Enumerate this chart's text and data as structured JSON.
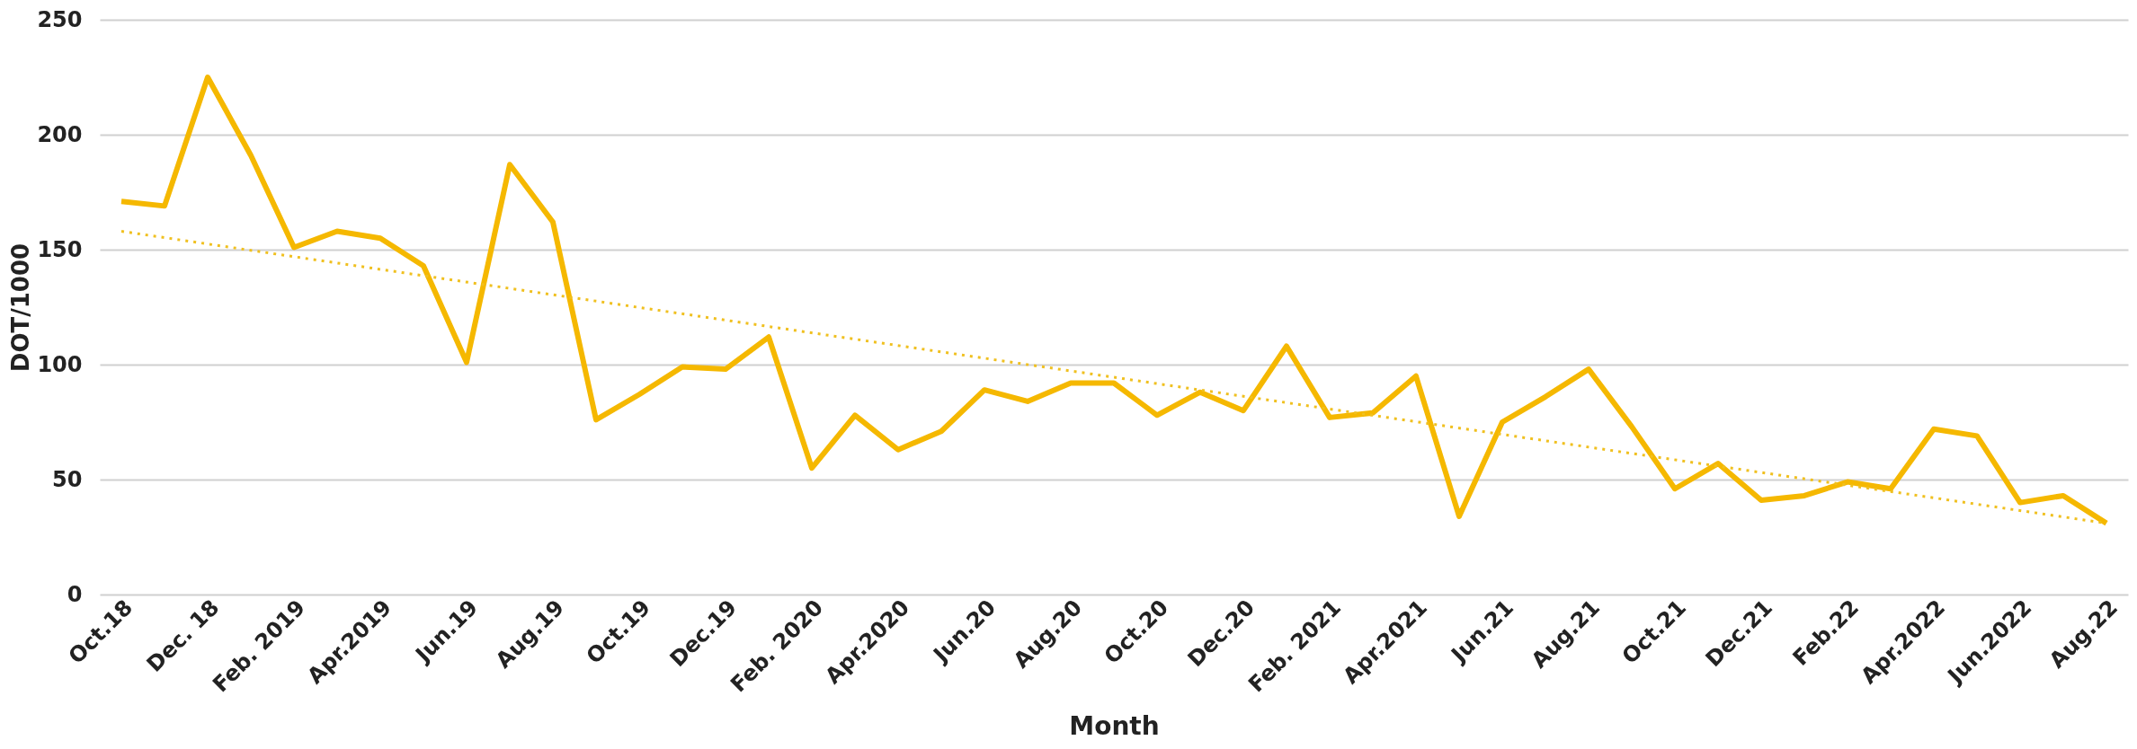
{
  "chart_data": {
    "type": "line",
    "xlabel": "Month",
    "ylabel": "DOT/1000",
    "categories": [
      "Oct.18",
      null,
      "Dec. 18",
      null,
      "Feb. 2019",
      null,
      "Apr.2019",
      null,
      "Jun.19",
      null,
      "Aug.19",
      null,
      "Oct.19",
      null,
      "Dec.19",
      null,
      "Feb. 2020",
      null,
      "Apr.2020",
      null,
      "Jun.20",
      null,
      "Aug.20",
      null,
      "Oct.20",
      null,
      "Dec.20",
      null,
      "Feb. 2021",
      null,
      "Apr.2021",
      null,
      "Jun.21",
      null,
      "Aug.21",
      null,
      "Oct.21",
      null,
      "Dec.21",
      null,
      "Feb.22",
      null,
      "Apr.2022",
      null,
      "Jun.2022",
      null,
      "Aug.22"
    ],
    "series": [
      {
        "color": "#f5b800",
        "line_style": "solid",
        "values": [
          171,
          169,
          225,
          191,
          151,
          158,
          155,
          143,
          101,
          187,
          162,
          76,
          87,
          99,
          98,
          112,
          55,
          78,
          63,
          71,
          89,
          84,
          92,
          92,
          78,
          88,
          80,
          108,
          77,
          79,
          95,
          34,
          75,
          86,
          98,
          73,
          46,
          57,
          41,
          43,
          49,
          46,
          72,
          69,
          40,
          43,
          31
        ]
      },
      {
        "color": "#f0c020",
        "line_style": "dotted",
        "values": [
          158,
          null,
          null,
          null,
          null,
          null,
          null,
          null,
          null,
          null,
          null,
          null,
          null,
          null,
          null,
          null,
          null,
          null,
          null,
          null,
          null,
          null,
          null,
          null,
          null,
          null,
          null,
          null,
          null,
          null,
          null,
          null,
          null,
          null,
          null,
          null,
          null,
          null,
          null,
          null,
          null,
          null,
          null,
          null,
          null,
          null,
          31
        ]
      }
    ],
    "ylim": [
      0,
      250
    ],
    "yticks": [
      0,
      50,
      100,
      150,
      200,
      250
    ],
    "grid": "y",
    "marker": "none"
  }
}
